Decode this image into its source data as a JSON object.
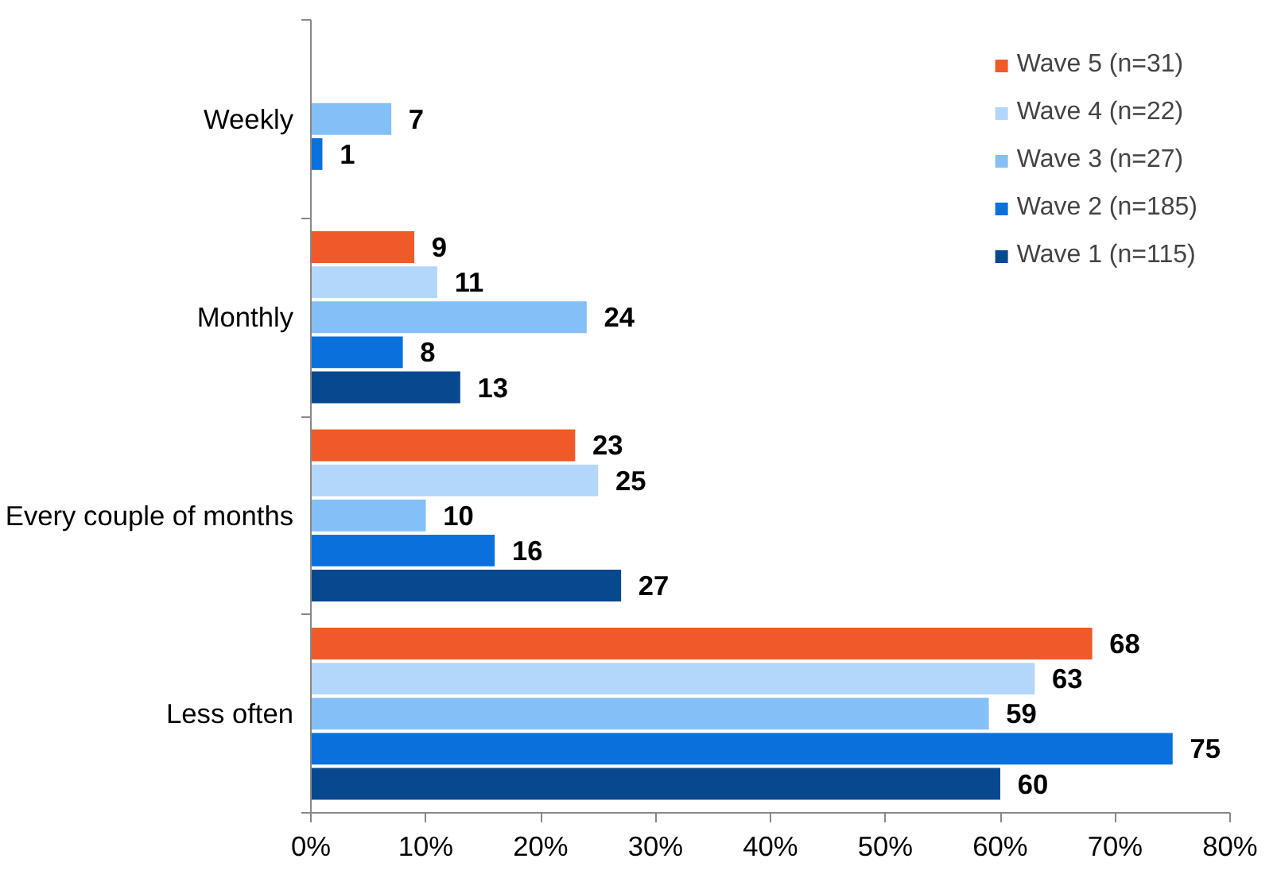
{
  "chart_data": {
    "type": "bar",
    "orientation": "horizontal",
    "categories": [
      "Weekly",
      "Monthly",
      "Every couple of months",
      "Less often"
    ],
    "series": [
      {
        "name": "Wave 5 (n=31)",
        "color": "#f05a28",
        "values": [
          null,
          9,
          23,
          68
        ]
      },
      {
        "name": "Wave 4 (n=22)",
        "color": "#b3d7fa",
        "values": [
          null,
          11,
          25,
          63
        ]
      },
      {
        "name": "Wave 3 (n=27)",
        "color": "#85bff7",
        "values": [
          7,
          24,
          10,
          59
        ]
      },
      {
        "name": "Wave 2 (n=185)",
        "color": "#0a70dc",
        "values": [
          1,
          8,
          16,
          75
        ]
      },
      {
        "name": "Wave 1 (n=115)",
        "color": "#08488e",
        "values": [
          null,
          13,
          27,
          60
        ]
      }
    ],
    "xlim": [
      0,
      80
    ],
    "xticks": [
      {
        "value": 0,
        "label": "0%"
      },
      {
        "value": 10,
        "label": "10%"
      },
      {
        "value": 20,
        "label": "20%"
      },
      {
        "value": 30,
        "label": "30%"
      },
      {
        "value": 40,
        "label": "40%"
      },
      {
        "value": 50,
        "label": "50%"
      },
      {
        "value": 60,
        "label": "60%"
      },
      {
        "value": 70,
        "label": "70%"
      },
      {
        "value": 80,
        "label": "80%"
      }
    ],
    "data_labels": true,
    "grid": false,
    "legend": "top right"
  }
}
